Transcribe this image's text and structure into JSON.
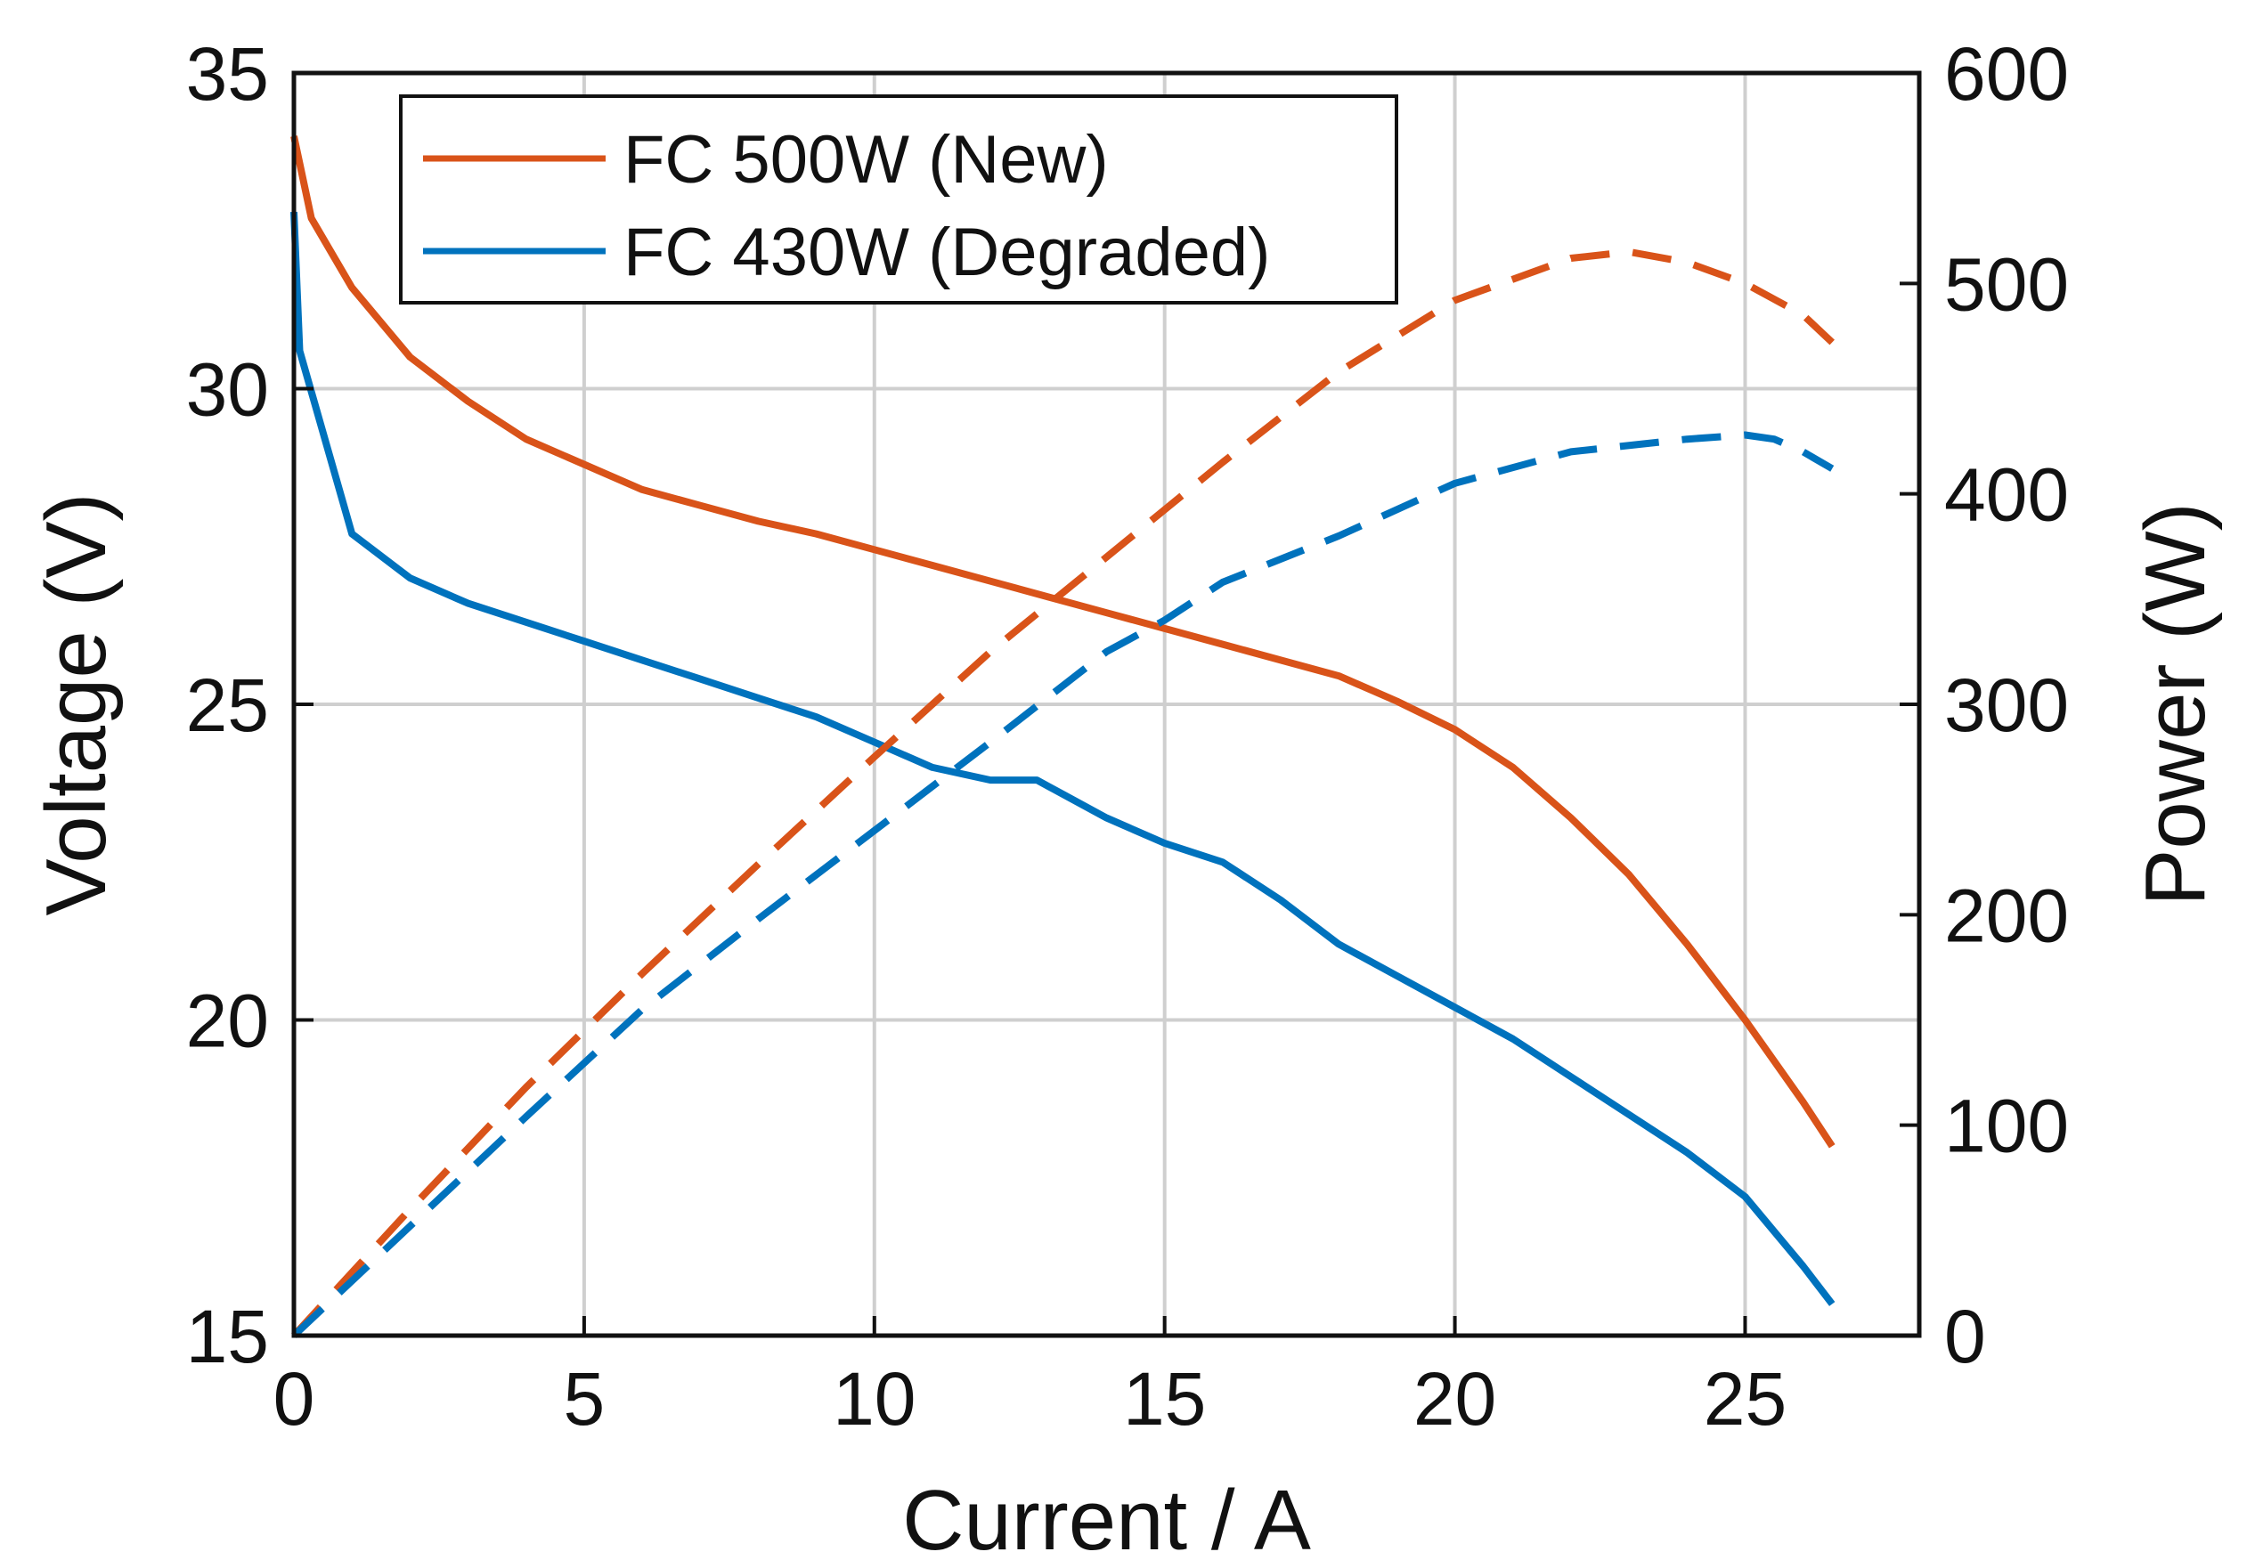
{
  "chart_data": {
    "type": "line",
    "title": "",
    "xlabel": "Current / A",
    "ylabel_left": "Voltage (V)",
    "ylabel_right": "Power (W)",
    "xlim": [
      0,
      28
    ],
    "ylim_left": [
      15,
      35
    ],
    "ylim_right": [
      0,
      600
    ],
    "xticks": [
      "0",
      "5",
      "10",
      "15",
      "20",
      "25"
    ],
    "yticks_left": [
      "15",
      "20",
      "25",
      "30",
      "35"
    ],
    "yticks_right": [
      "0",
      "100",
      "200",
      "300",
      "400",
      "500",
      "600"
    ],
    "grid": true,
    "legend_position": "top-left",
    "series": [
      {
        "name": "FC 500W (New)",
        "axis": "left",
        "style": "solid",
        "color": "#D95319",
        "x": [
          0,
          0.3,
          1,
          2,
          3,
          4,
          5,
          6,
          7,
          8,
          9,
          10,
          11,
          12,
          13,
          14,
          15,
          16,
          17,
          18,
          19,
          20,
          21,
          22,
          23,
          24,
          25,
          26,
          26.5
        ],
        "y": [
          34,
          32.7,
          31.6,
          30.5,
          29.8,
          29.2,
          28.8,
          28.4,
          28.15,
          27.9,
          27.7,
          27.45,
          27.2,
          26.95,
          26.7,
          26.45,
          26.2,
          25.95,
          25.7,
          25.45,
          25.05,
          24.6,
          24.0,
          23.2,
          22.3,
          21.2,
          20.0,
          18.7,
          18.0
        ]
      },
      {
        "name": "FC 430W (Degraded)",
        "axis": "left",
        "style": "solid",
        "color": "#0072BD",
        "x": [
          0,
          0.1,
          1,
          2,
          3,
          4,
          5,
          6,
          7,
          8,
          9,
          10,
          11,
          12,
          12.8,
          13,
          14,
          15,
          16,
          17,
          18,
          19,
          20,
          21,
          22,
          23,
          24,
          25,
          26,
          26.5
        ],
        "y": [
          32.8,
          30.6,
          27.7,
          27.0,
          26.6,
          26.3,
          26.0,
          25.7,
          25.4,
          25.1,
          24.8,
          24.4,
          24.0,
          23.8,
          23.8,
          23.7,
          23.2,
          22.8,
          22.5,
          21.9,
          21.2,
          20.7,
          20.2,
          19.7,
          19.1,
          18.5,
          17.9,
          17.2,
          16.1,
          15.5
        ]
      },
      {
        "name": "",
        "axis": "right",
        "style": "dashed",
        "color": "#D95319",
        "x": [
          0,
          2,
          4,
          6,
          8,
          10,
          12,
          14,
          16,
          18,
          20,
          22,
          23,
          24,
          25,
          26,
          26.5
        ],
        "y": [
          0,
          60,
          118,
          172,
          224,
          275,
          325,
          370,
          415,
          458,
          492,
          512,
          515,
          510,
          500,
          485,
          472
        ]
      },
      {
        "name": "",
        "axis": "right",
        "style": "dashed",
        "color": "#0072BD",
        "x": [
          0,
          2,
          4,
          6,
          8,
          10,
          12,
          14,
          15,
          16,
          18,
          20,
          22,
          24,
          25,
          25.5,
          26,
          26.5
        ],
        "y": [
          0,
          52,
          104,
          155,
          198,
          240,
          282,
          325,
          340,
          358,
          380,
          405,
          420,
          426,
          428,
          426,
          420,
          412
        ]
      }
    ]
  }
}
